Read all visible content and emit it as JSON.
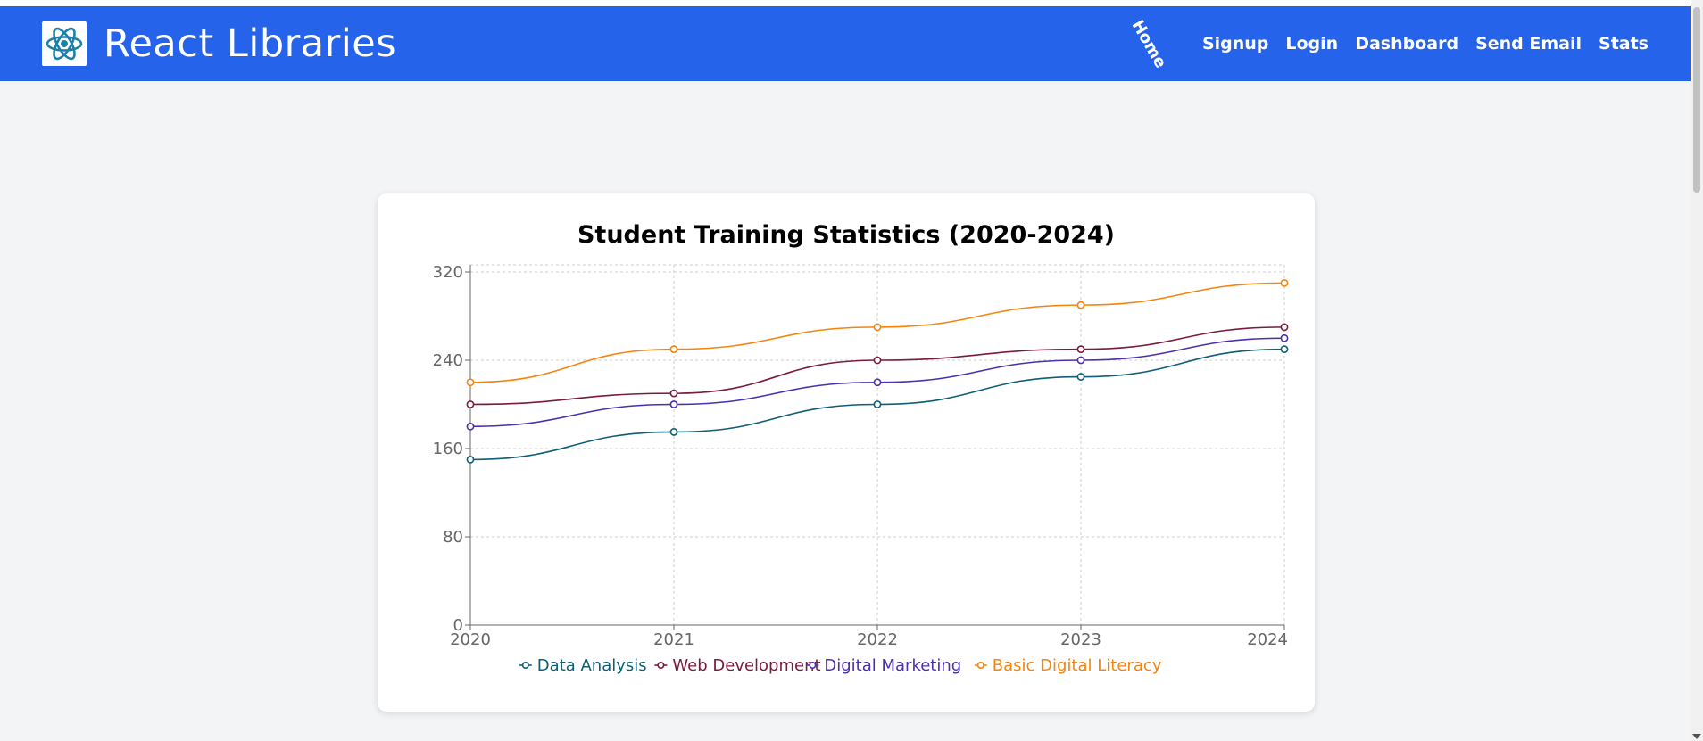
{
  "navbar": {
    "brand": "React Libraries",
    "links": [
      "Home",
      "Signup",
      "Login",
      "Dashboard",
      "Send Email",
      "Stats"
    ]
  },
  "colors": {
    "navbar": "#2563eb",
    "logo": "#1e7fa8"
  },
  "chart_data": {
    "type": "line",
    "title": "Student Training Statistics (2020-2024)",
    "x": [
      "2020",
      "2021",
      "2022",
      "2023",
      "2024"
    ],
    "yticks": [
      "0",
      "80",
      "160",
      "240",
      "320"
    ],
    "ylim": [
      0,
      320
    ],
    "grid": true,
    "legend": "bottom",
    "series": [
      {
        "name": "Data Analysis",
        "color": "#0f5e75",
        "values": [
          150,
          175,
          200,
          225,
          250
        ]
      },
      {
        "name": "Web Development",
        "color": "#7a1b3c",
        "values": [
          200,
          210,
          240,
          250,
          270
        ]
      },
      {
        "name": "Digital Marketing",
        "color": "#4b2fb0",
        "values": [
          180,
          200,
          220,
          240,
          260
        ]
      },
      {
        "name": "Basic Digital Literacy",
        "color": "#f5840f",
        "values": [
          220,
          250,
          270,
          290,
          310
        ]
      }
    ]
  }
}
